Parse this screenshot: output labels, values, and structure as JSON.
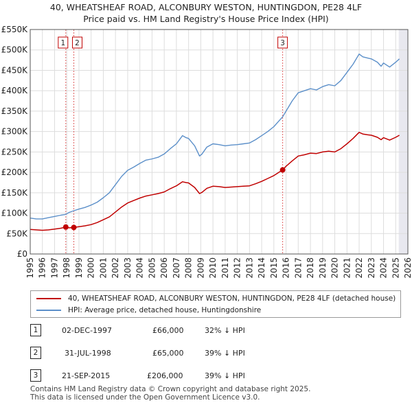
{
  "header": {
    "title_line1": "40, WHEATSHEAF ROAD, ALCONBURY WESTON, HUNTINGDON, PE28 4LF",
    "title_line2": "Price paid vs. HM Land Registry's House Price Index (HPI)"
  },
  "colors": {
    "property": "#c00000",
    "hpi": "#5b8fc9",
    "grid": "#dddddd",
    "marker_line": "#e06060"
  },
  "legend": {
    "property_label": "40, WHEATSHEAF ROAD, ALCONBURY WESTON, HUNTINGDON, PE28 4LF (detached house)",
    "hpi_label": "HPI: Average price, detached house, Huntingdonshire"
  },
  "sales": [
    {
      "num": "1",
      "date": "02-DEC-1997",
      "price": "£66,000",
      "pct": "32% ↓ HPI"
    },
    {
      "num": "2",
      "date": "31-JUL-1998",
      "price": "£65,000",
      "pct": "39% ↓ HPI"
    },
    {
      "num": "3",
      "date": "21-SEP-2015",
      "price": "£206,000",
      "pct": "39% ↓ HPI"
    }
  ],
  "footer": {
    "line1": "Contains HM Land Registry data © Crown copyright and database right 2025.",
    "line2": "This data is licensed under the Open Government Licence v3.0."
  },
  "chart_data": {
    "type": "line",
    "title": "40, WHEATSHEAF ROAD, ALCONBURY WESTON, HUNTINGDON, PE28 4LF — Price paid vs. HM Land Registry's House Price Index (HPI)",
    "xlabel": "",
    "ylabel": "",
    "xlim": [
      1995,
      2026
    ],
    "ylim": [
      0,
      550000
    ],
    "grid": true,
    "y_ticks": [
      0,
      50000,
      100000,
      150000,
      200000,
      250000,
      300000,
      350000,
      400000,
      450000,
      500000,
      550000
    ],
    "y_tick_labels": [
      "£0",
      "£50K",
      "£100K",
      "£150K",
      "£200K",
      "£250K",
      "£300K",
      "£350K",
      "£400K",
      "£450K",
      "£500K",
      "£550K"
    ],
    "x_ticks": [
      1995,
      1996,
      1997,
      1998,
      1999,
      2000,
      2001,
      2002,
      2003,
      2004,
      2005,
      2006,
      2007,
      2008,
      2009,
      2010,
      2011,
      2012,
      2013,
      2014,
      2015,
      2016,
      2017,
      2018,
      2019,
      2020,
      2021,
      2022,
      2023,
      2024,
      2025,
      2026
    ],
    "x_tick_labels": [
      "1995",
      "1996",
      "1997",
      "1998",
      "1999",
      "2000",
      "2001",
      "2002",
      "2003",
      "2004",
      "2005",
      "2006",
      "2007",
      "2008",
      "2009",
      "2010",
      "2011",
      "2012",
      "2013",
      "2014",
      "2015",
      "2016",
      "2017",
      "2018",
      "2019",
      "2020",
      "2021",
      "2022",
      "2023",
      "2024",
      "2025",
      "2026"
    ],
    "legend_position": "below",
    "series": [
      {
        "name": "HPI: Average price, detached house, Huntingdonshire",
        "x": [
          1995,
          1995.5,
          1996,
          1996.5,
          1997,
          1997.5,
          1997.92,
          1998.2,
          1998.58,
          1999,
          1999.5,
          2000,
          2000.5,
          2001,
          2001.5,
          2002,
          2002.5,
          2003,
          2003.5,
          2004,
          2004.5,
          2005,
          2005.5,
          2006,
          2006.5,
          2007,
          2007.5,
          2007.8,
          2008,
          2008.5,
          2008.9,
          2009.1,
          2009.5,
          2010,
          2010.5,
          2011,
          2011.5,
          2012,
          2012.5,
          2013,
          2013.5,
          2014,
          2014.5,
          2015,
          2015.72,
          2016,
          2016.5,
          2017,
          2017.5,
          2018,
          2018.5,
          2019,
          2019.5,
          2020,
          2020.5,
          2021,
          2021.5,
          2022,
          2022.3,
          2022.7,
          2023,
          2023.5,
          2023.8,
          2024,
          2024.5,
          2025,
          2025.3
        ],
        "values": [
          88000,
          86000,
          86000,
          89000,
          92000,
          95000,
          97000,
          102000,
          106000,
          110000,
          114000,
          120000,
          127000,
          138000,
          150000,
          170000,
          190000,
          205000,
          213000,
          222000,
          230000,
          233000,
          237000,
          245000,
          258000,
          270000,
          290000,
          285000,
          283000,
          265000,
          240000,
          245000,
          262000,
          270000,
          268000,
          265000,
          267000,
          268000,
          270000,
          272000,
          280000,
          290000,
          300000,
          312000,
          336000,
          350000,
          375000,
          395000,
          400000,
          405000,
          402000,
          410000,
          415000,
          412000,
          425000,
          445000,
          465000,
          490000,
          483000,
          480000,
          478000,
          470000,
          460000,
          468000,
          458000,
          470000,
          478000
        ]
      },
      {
        "name": "40, WHEATSHEAF ROAD, ALCONBURY WESTON, HUNTINGDON, PE28 4LF (detached house)",
        "x": [
          1995,
          1995.5,
          1996,
          1996.5,
          1997,
          1997.5,
          1997.92,
          1998.2,
          1998.58,
          1999,
          1999.5,
          2000,
          2000.5,
          2001,
          2001.5,
          2002,
          2002.5,
          2003,
          2003.5,
          2004,
          2004.5,
          2005,
          2005.5,
          2006,
          2006.5,
          2007,
          2007.5,
          2007.8,
          2008,
          2008.5,
          2008.9,
          2009.1,
          2009.5,
          2010,
          2010.5,
          2011,
          2011.5,
          2012,
          2012.5,
          2013,
          2013.5,
          2014,
          2014.5,
          2015,
          2015.72,
          2016,
          2016.5,
          2017,
          2017.5,
          2018,
          2018.5,
          2019,
          2019.5,
          2020,
          2020.5,
          2021,
          2021.5,
          2022,
          2022.3,
          2022.7,
          2023,
          2023.5,
          2023.8,
          2024,
          2024.5,
          2025,
          2025.3
        ],
        "values": [
          60000,
          59000,
          58000,
          59000,
          61000,
          63000,
          66000,
          64000,
          65000,
          67000,
          69000,
          72000,
          77000,
          84000,
          91000,
          103000,
          115000,
          125000,
          131000,
          137000,
          142000,
          145000,
          148000,
          152000,
          160000,
          167000,
          177000,
          175000,
          174000,
          163000,
          148000,
          151000,
          161000,
          166000,
          165000,
          163000,
          164000,
          165000,
          166000,
          167000,
          172000,
          178000,
          185000,
          192000,
          206000,
          215000,
          228000,
          240000,
          243000,
          247000,
          246000,
          250000,
          252000,
          250000,
          258000,
          270000,
          283000,
          298000,
          294000,
          292000,
          291000,
          286000,
          280000,
          285000,
          279000,
          286000,
          291000
        ]
      }
    ],
    "markers": [
      {
        "label": "1",
        "x": 1997.92,
        "y": 66000
      },
      {
        "label": "2",
        "x": 1998.58,
        "y": 65000
      },
      {
        "label": "3",
        "x": 2015.72,
        "y": 206000
      }
    ]
  }
}
